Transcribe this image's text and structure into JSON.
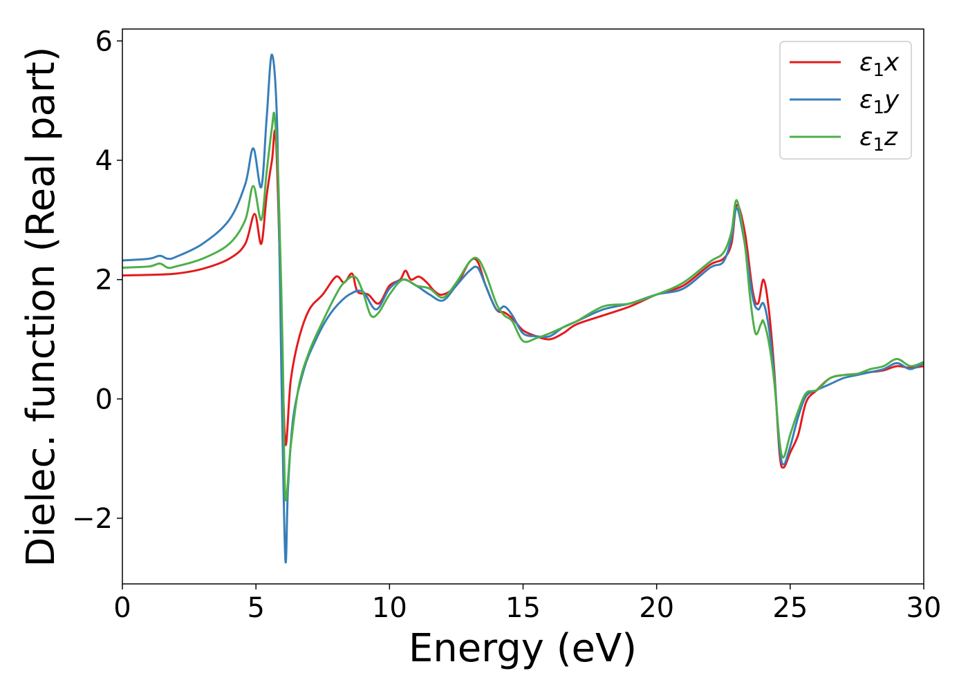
{
  "chart_data": {
    "type": "line",
    "title": "",
    "xlabel": "Energy (eV)",
    "ylabel": "Dielec. function (Real part)",
    "xlim": [
      0,
      30
    ],
    "ylim": [
      -3.1,
      6.2
    ],
    "xticks": [
      0,
      5,
      10,
      15,
      20,
      25,
      30
    ],
    "xtick_labels": [
      "0",
      "5",
      "10",
      "15",
      "20",
      "25",
      "30"
    ],
    "yticks": [
      -2,
      0,
      2,
      4,
      6
    ],
    "ytick_labels": [
      "−2",
      "0",
      "2",
      "4",
      "6"
    ],
    "grid": false,
    "legend": "top-right",
    "series": [
      {
        "name": "ε1x",
        "legend_main": "ε",
        "legend_sub": "1",
        "legend_suffix": "x",
        "color": "#e41a1c",
        "x": [
          0,
          1,
          2,
          3,
          4,
          4.6,
          4.95,
          5.2,
          5.4,
          5.6,
          5.75,
          5.95,
          6.1,
          6.3,
          6.6,
          7,
          7.5,
          8,
          8.3,
          8.6,
          8.8,
          9.2,
          9.6,
          10,
          10.4,
          10.6,
          10.8,
          11.1,
          11.4,
          11.7,
          12,
          12.5,
          13,
          13.3,
          13.6,
          14,
          14.3,
          14.6,
          15,
          15.5,
          16,
          16.5,
          17,
          18,
          19,
          20,
          21,
          22,
          22.5,
          22.8,
          23,
          23.3,
          23.6,
          23.8,
          24,
          24.2,
          24.4,
          24.6,
          24.75,
          25,
          25.3,
          25.6,
          26,
          26.5,
          27,
          27.5,
          28,
          28.5,
          29,
          29.5,
          30
        ],
        "y": [
          2.07,
          2.08,
          2.1,
          2.18,
          2.35,
          2.6,
          3.1,
          2.6,
          3.4,
          4.0,
          4.35,
          1.4,
          -0.75,
          0.3,
          1.0,
          1.5,
          1.75,
          2.05,
          1.95,
          2.1,
          1.8,
          1.75,
          1.6,
          1.9,
          2.0,
          2.15,
          2.0,
          2.05,
          1.95,
          1.8,
          1.75,
          1.9,
          2.3,
          2.3,
          1.9,
          1.5,
          1.45,
          1.35,
          1.15,
          1.05,
          1.0,
          1.1,
          1.25,
          1.4,
          1.55,
          1.75,
          1.9,
          2.25,
          2.35,
          2.6,
          3.25,
          2.8,
          1.8,
          1.6,
          2.0,
          1.5,
          0.5,
          -0.9,
          -1.15,
          -0.9,
          -0.6,
          -0.05,
          0.15,
          0.35,
          0.4,
          0.42,
          0.45,
          0.48,
          0.55,
          0.52,
          0.55
        ]
      },
      {
        "name": "ε1y",
        "legend_main": "ε",
        "legend_sub": "1",
        "legend_suffix": "y",
        "color": "#377eb8",
        "x": [
          0,
          1,
          1.4,
          1.7,
          2,
          3,
          4,
          4.6,
          4.9,
          5.2,
          5.4,
          5.6,
          5.8,
          5.95,
          6.1,
          6.2,
          6.4,
          6.8,
          7.2,
          7.6,
          8,
          8.5,
          9,
          9.5,
          10,
          10.5,
          11,
          11.5,
          12,
          12.5,
          13,
          13.3,
          13.6,
          14,
          14.3,
          14.6,
          15,
          15.5,
          16,
          16.5,
          17,
          18,
          19,
          20,
          21,
          22,
          22.5,
          22.8,
          23,
          23.3,
          23.6,
          23.8,
          24,
          24.2,
          24.4,
          24.6,
          24.75,
          25,
          25.3,
          25.6,
          26,
          26.5,
          27,
          27.5,
          28,
          28.5,
          29,
          29.5,
          30
        ],
        "y": [
          2.32,
          2.35,
          2.4,
          2.35,
          2.38,
          2.6,
          3.0,
          3.6,
          4.2,
          3.55,
          4.7,
          5.77,
          4.5,
          0.5,
          -2.68,
          -1.5,
          -0.3,
          0.5,
          0.95,
          1.3,
          1.55,
          1.75,
          1.8,
          1.5,
          1.85,
          2.0,
          1.9,
          1.75,
          1.65,
          1.9,
          2.15,
          2.2,
          1.9,
          1.5,
          1.55,
          1.4,
          1.1,
          1.05,
          1.05,
          1.2,
          1.3,
          1.5,
          1.6,
          1.75,
          1.85,
          2.2,
          2.3,
          2.7,
          3.2,
          2.6,
          1.7,
          1.5,
          1.6,
          1.2,
          0.4,
          -0.8,
          -1.1,
          -0.8,
          -0.3,
          0.05,
          0.15,
          0.25,
          0.35,
          0.4,
          0.45,
          0.5,
          0.6,
          0.5,
          0.6
        ]
      },
      {
        "name": "ε1z",
        "legend_main": "ε",
        "legend_sub": "1",
        "legend_suffix": "z",
        "color": "#4daf4a",
        "x": [
          0,
          1,
          1.4,
          1.7,
          2,
          3,
          4,
          4.6,
          4.9,
          5.2,
          5.4,
          5.6,
          5.7,
          5.85,
          6.0,
          6.1,
          6.3,
          6.6,
          7,
          7.5,
          8,
          8.3,
          8.7,
          9,
          9.3,
          9.6,
          10,
          10.5,
          11,
          11.5,
          12,
          12.5,
          13,
          13.3,
          13.6,
          14,
          14.3,
          14.6,
          15,
          15.5,
          16,
          16.5,
          17,
          18,
          19,
          20,
          21,
          22,
          22.5,
          22.8,
          23,
          23.3,
          23.5,
          23.7,
          23.9,
          24,
          24.2,
          24.4,
          24.6,
          24.75,
          25,
          25.3,
          25.6,
          26,
          26.5,
          27,
          27.5,
          28,
          28.5,
          29,
          29.5,
          30
        ],
        "y": [
          2.2,
          2.22,
          2.27,
          2.2,
          2.22,
          2.35,
          2.6,
          3.0,
          3.57,
          3.0,
          3.8,
          4.55,
          4.73,
          3.5,
          0.8,
          -1.65,
          -0.8,
          0.2,
          0.8,
          1.3,
          1.75,
          1.95,
          2.05,
          1.8,
          1.4,
          1.45,
          1.75,
          2.0,
          1.9,
          1.85,
          1.7,
          1.95,
          2.3,
          2.35,
          2.1,
          1.6,
          1.4,
          1.3,
          0.97,
          1.02,
          1.1,
          1.2,
          1.3,
          1.55,
          1.6,
          1.75,
          1.95,
          2.3,
          2.45,
          2.8,
          3.33,
          2.6,
          1.7,
          1.1,
          1.25,
          1.3,
          0.95,
          0.3,
          -0.7,
          -0.98,
          -0.6,
          -0.2,
          0.1,
          0.15,
          0.35,
          0.4,
          0.42,
          0.5,
          0.55,
          0.67,
          0.55,
          0.62
        ]
      }
    ]
  }
}
